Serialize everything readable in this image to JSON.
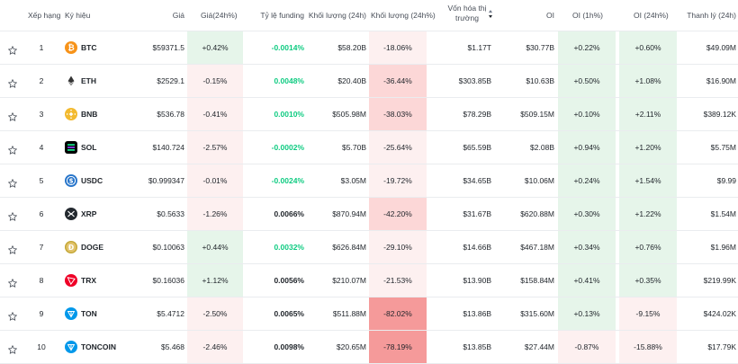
{
  "headers": {
    "rank": "Xếp hạng",
    "symbol": "Ký hiệu",
    "price": "Giá",
    "price_change": "Giá(24h%)",
    "funding": "Tỷ lệ funding",
    "volume": "Khối lượng (24h)",
    "volume_change": "Khối lượng (24h%)",
    "market_cap_line1": "Vốn hóa thị",
    "market_cap_line2": "trường",
    "oi": "OI",
    "oi_1h": "OI (1h%)",
    "oi_24h": "OI (24h%)",
    "liquidation": "Thanh lý (24h)"
  },
  "rows": [
    {
      "rank": "1",
      "symbol": "BTC",
      "icon": "btc-icon",
      "price": "$59371.5",
      "price_change": "+0.42%",
      "funding": "-0.0014%",
      "volume": "$58.20B",
      "volume_change": "-18.06%",
      "market_cap": "$1.17T",
      "oi": "$30.77B",
      "oi_1h": "+0.22%",
      "oi_24h": "+0.60%",
      "liquidation": "$49.09M"
    },
    {
      "rank": "2",
      "symbol": "ETH",
      "icon": "eth-icon",
      "price": "$2529.1",
      "price_change": "-0.15%",
      "funding": "0.0048%",
      "volume": "$20.40B",
      "volume_change": "-36.44%",
      "market_cap": "$303.85B",
      "oi": "$10.63B",
      "oi_1h": "+0.50%",
      "oi_24h": "+1.08%",
      "liquidation": "$16.90M"
    },
    {
      "rank": "3",
      "symbol": "BNB",
      "icon": "bnb-icon",
      "price": "$536.78",
      "price_change": "-0.41%",
      "funding": "0.0010%",
      "volume": "$505.98M",
      "volume_change": "-38.03%",
      "market_cap": "$78.29B",
      "oi": "$509.15M",
      "oi_1h": "+0.10%",
      "oi_24h": "+2.11%",
      "liquidation": "$389.12K"
    },
    {
      "rank": "4",
      "symbol": "SOL",
      "icon": "sol-icon",
      "price": "$140.724",
      "price_change": "-2.57%",
      "funding": "-0.0002%",
      "volume": "$5.70B",
      "volume_change": "-25.64%",
      "market_cap": "$65.59B",
      "oi": "$2.08B",
      "oi_1h": "+0.94%",
      "oi_24h": "+1.20%",
      "liquidation": "$5.75M"
    },
    {
      "rank": "5",
      "symbol": "USDC",
      "icon": "usdc-icon",
      "price": "$0.999347",
      "price_change": "-0.01%",
      "funding": "-0.0024%",
      "volume": "$3.05M",
      "volume_change": "-19.72%",
      "market_cap": "$34.65B",
      "oi": "$10.06M",
      "oi_1h": "+0.24%",
      "oi_24h": "+1.54%",
      "liquidation": "$9.99"
    },
    {
      "rank": "6",
      "symbol": "XRP",
      "icon": "xrp-icon",
      "price": "$0.5633",
      "price_change": "-1.26%",
      "funding": "0.0066%",
      "volume": "$870.94M",
      "volume_change": "-42.20%",
      "market_cap": "$31.67B",
      "oi": "$620.88M",
      "oi_1h": "+0.30%",
      "oi_24h": "+1.22%",
      "liquidation": "$1.54M"
    },
    {
      "rank": "7",
      "symbol": "DOGE",
      "icon": "doge-icon",
      "price": "$0.10063",
      "price_change": "+0.44%",
      "funding": "0.0032%",
      "volume": "$626.84M",
      "volume_change": "-29.10%",
      "market_cap": "$14.66B",
      "oi": "$467.18M",
      "oi_1h": "+0.34%",
      "oi_24h": "+0.76%",
      "liquidation": "$1.96M"
    },
    {
      "rank": "8",
      "symbol": "TRX",
      "icon": "trx-icon",
      "price": "$0.16036",
      "price_change": "+1.12%",
      "funding": "0.0056%",
      "volume": "$210.07M",
      "volume_change": "-21.53%",
      "market_cap": "$13.90B",
      "oi": "$158.84M",
      "oi_1h": "+0.41%",
      "oi_24h": "+0.35%",
      "liquidation": "$219.99K"
    },
    {
      "rank": "9",
      "symbol": "TON",
      "icon": "ton-icon",
      "price": "$5.4712",
      "price_change": "-2.50%",
      "funding": "0.0065%",
      "volume": "$511.88M",
      "volume_change": "-82.02%",
      "market_cap": "$13.86B",
      "oi": "$315.60M",
      "oi_1h": "+0.13%",
      "oi_24h": "-9.15%",
      "liquidation": "$424.02K"
    },
    {
      "rank": "10",
      "symbol": "TONCOIN",
      "icon": "toncoin-icon",
      "price": "$5.468",
      "price_change": "-2.46%",
      "funding": "0.0098%",
      "volume": "$20.65M",
      "volume_change": "-78.19%",
      "market_cap": "$13.85B",
      "oi": "$27.44M",
      "oi_1h": "-0.87%",
      "oi_24h": "-15.88%",
      "liquidation": "$17.79K"
    }
  ],
  "colors": {
    "positive_text": "#0ecb81",
    "positive_bg": "#e6f5ea",
    "negative_bg_light": "#fdf0f0",
    "negative_bg_mid": "#fcd7d7",
    "negative_bg_strong": "#f59a9a"
  }
}
